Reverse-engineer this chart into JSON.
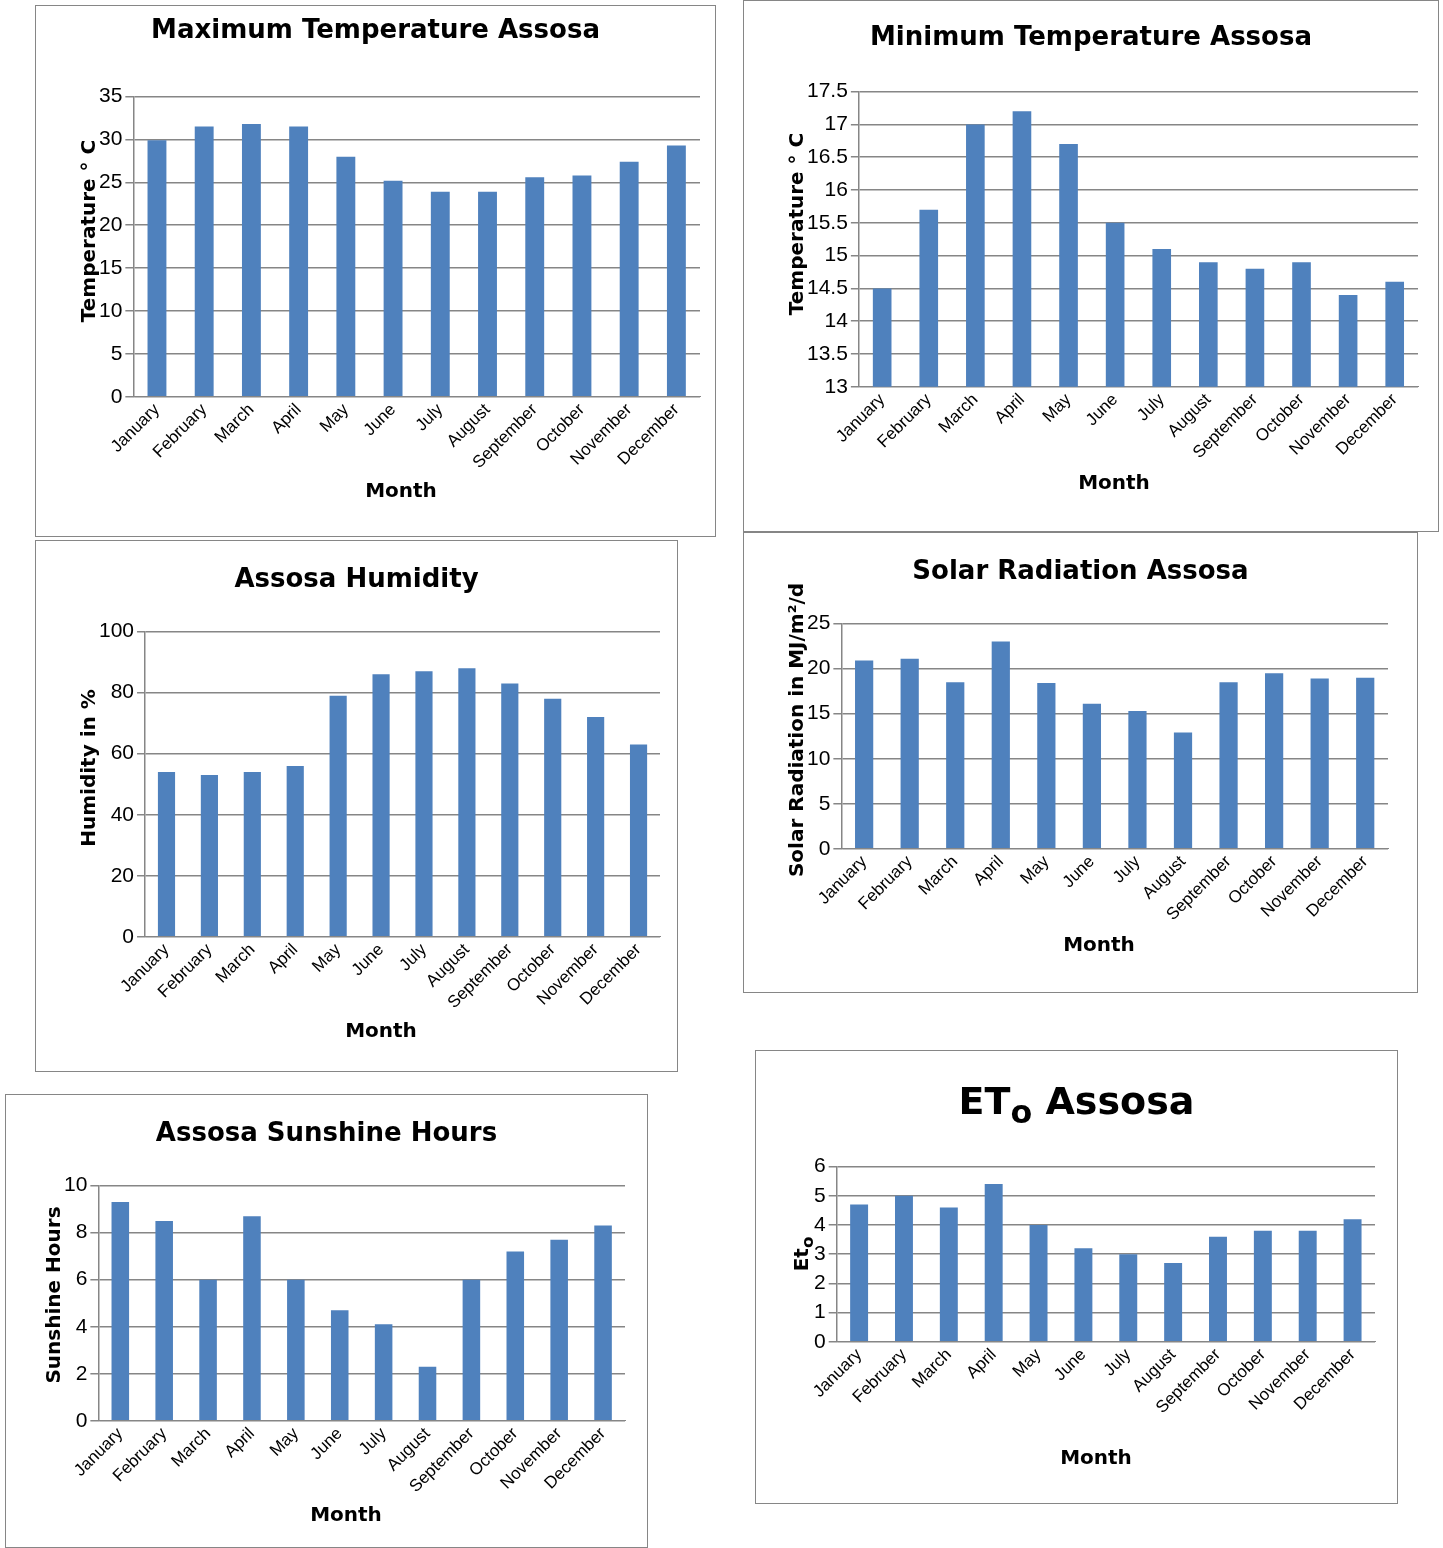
{
  "chart_data": [
    {
      "type": "bar",
      "title": "Maximum Temperature Assosa",
      "xlabel": "Month",
      "ylabel": "Temperature ° C",
      "categories": [
        "January",
        "February",
        "March",
        "April",
        "May",
        "June",
        "July",
        "August",
        "September",
        "October",
        "November",
        "December"
      ],
      "values": [
        29.9,
        31.5,
        31.8,
        31.5,
        28,
        25.2,
        23.9,
        23.9,
        25.6,
        25.8,
        27.4,
        29.3
      ],
      "color": "#4f81bd",
      "ylim": [
        0,
        35
      ],
      "yticks": [
        0,
        5,
        10,
        15,
        20,
        25,
        30,
        35
      ],
      "grid": "y"
    },
    {
      "type": "bar",
      "title": "Minimum Temperature Assosa",
      "xlabel": "Month",
      "ylabel": "Temperature ° C",
      "categories": [
        "January",
        "February",
        "March",
        "April",
        "May",
        "June",
        "July",
        "August",
        "September",
        "October",
        "November",
        "December"
      ],
      "values": [
        14.5,
        15.7,
        17,
        17.2,
        16.7,
        15.5,
        15.1,
        14.9,
        14.8,
        14.9,
        14.4,
        14.6
      ],
      "color": "#4f81bd",
      "ylim": [
        13,
        17.5
      ],
      "yticks": [
        13,
        13.5,
        14,
        14.5,
        15,
        15.5,
        16,
        16.5,
        17,
        17.5
      ],
      "grid": "y"
    },
    {
      "type": "bar",
      "title": "Assosa Humidity",
      "xlabel": "Month",
      "ylabel": "Humidity in %",
      "categories": [
        "January",
        "February",
        "March",
        "April",
        "May",
        "June",
        "July",
        "August",
        "September",
        "October",
        "November",
        "December"
      ],
      "values": [
        54,
        53,
        54,
        56,
        79,
        86,
        87,
        88,
        83,
        78,
        72,
        63
      ],
      "color": "#4f81bd",
      "ylim": [
        0,
        100
      ],
      "yticks": [
        0,
        20,
        40,
        60,
        80,
        100
      ],
      "grid": "y"
    },
    {
      "type": "bar",
      "title": "Solar Radiation Assosa",
      "xlabel": "Month",
      "ylabel": "Solar Radiation in MJ/m²/d",
      "categories": [
        "January",
        "February",
        "March",
        "April",
        "May",
        "June",
        "July",
        "August",
        "September",
        "October",
        "November",
        "December"
      ],
      "values": [
        20.9,
        21.1,
        18.5,
        23,
        18.4,
        16.1,
        15.3,
        12.9,
        18.5,
        19.5,
        18.9,
        19
      ],
      "color": "#4f81bd",
      "ylim": [
        0,
        25
      ],
      "yticks": [
        0,
        5,
        10,
        15,
        20,
        25
      ],
      "grid": "y"
    },
    {
      "type": "bar",
      "title": "Assosa Sunshine Hours",
      "xlabel": "Month",
      "ylabel": "Sunshine Hours",
      "categories": [
        "January",
        "February",
        "March",
        "April",
        "May",
        "June",
        "July",
        "August",
        "September",
        "October",
        "November",
        "December"
      ],
      "values": [
        9.3,
        8.5,
        6,
        8.7,
        6,
        4.7,
        4.1,
        2.3,
        6,
        7.2,
        7.7,
        8.3
      ],
      "color": "#4f81bd",
      "ylim": [
        0,
        10
      ],
      "yticks": [
        0,
        2,
        4,
        6,
        8,
        10
      ],
      "grid": "y"
    },
    {
      "type": "bar",
      "title": "ET$_{o}$ Assosa",
      "xlabel": "Month",
      "ylabel": "Et$_{o}$",
      "categories": [
        "January",
        "February",
        "March",
        "April",
        "May",
        "June",
        "July",
        "August",
        "September",
        "October",
        "November",
        "December"
      ],
      "values": [
        4.7,
        5.0,
        4.6,
        5.4,
        4.0,
        3.2,
        3.0,
        2.7,
        3.6,
        3.8,
        3.8,
        4.2
      ],
      "color": "#4f81bd",
      "ylim": [
        0,
        6
      ],
      "yticks": [
        0,
        1,
        2,
        3,
        4,
        5,
        6
      ],
      "grid": "y"
    }
  ]
}
